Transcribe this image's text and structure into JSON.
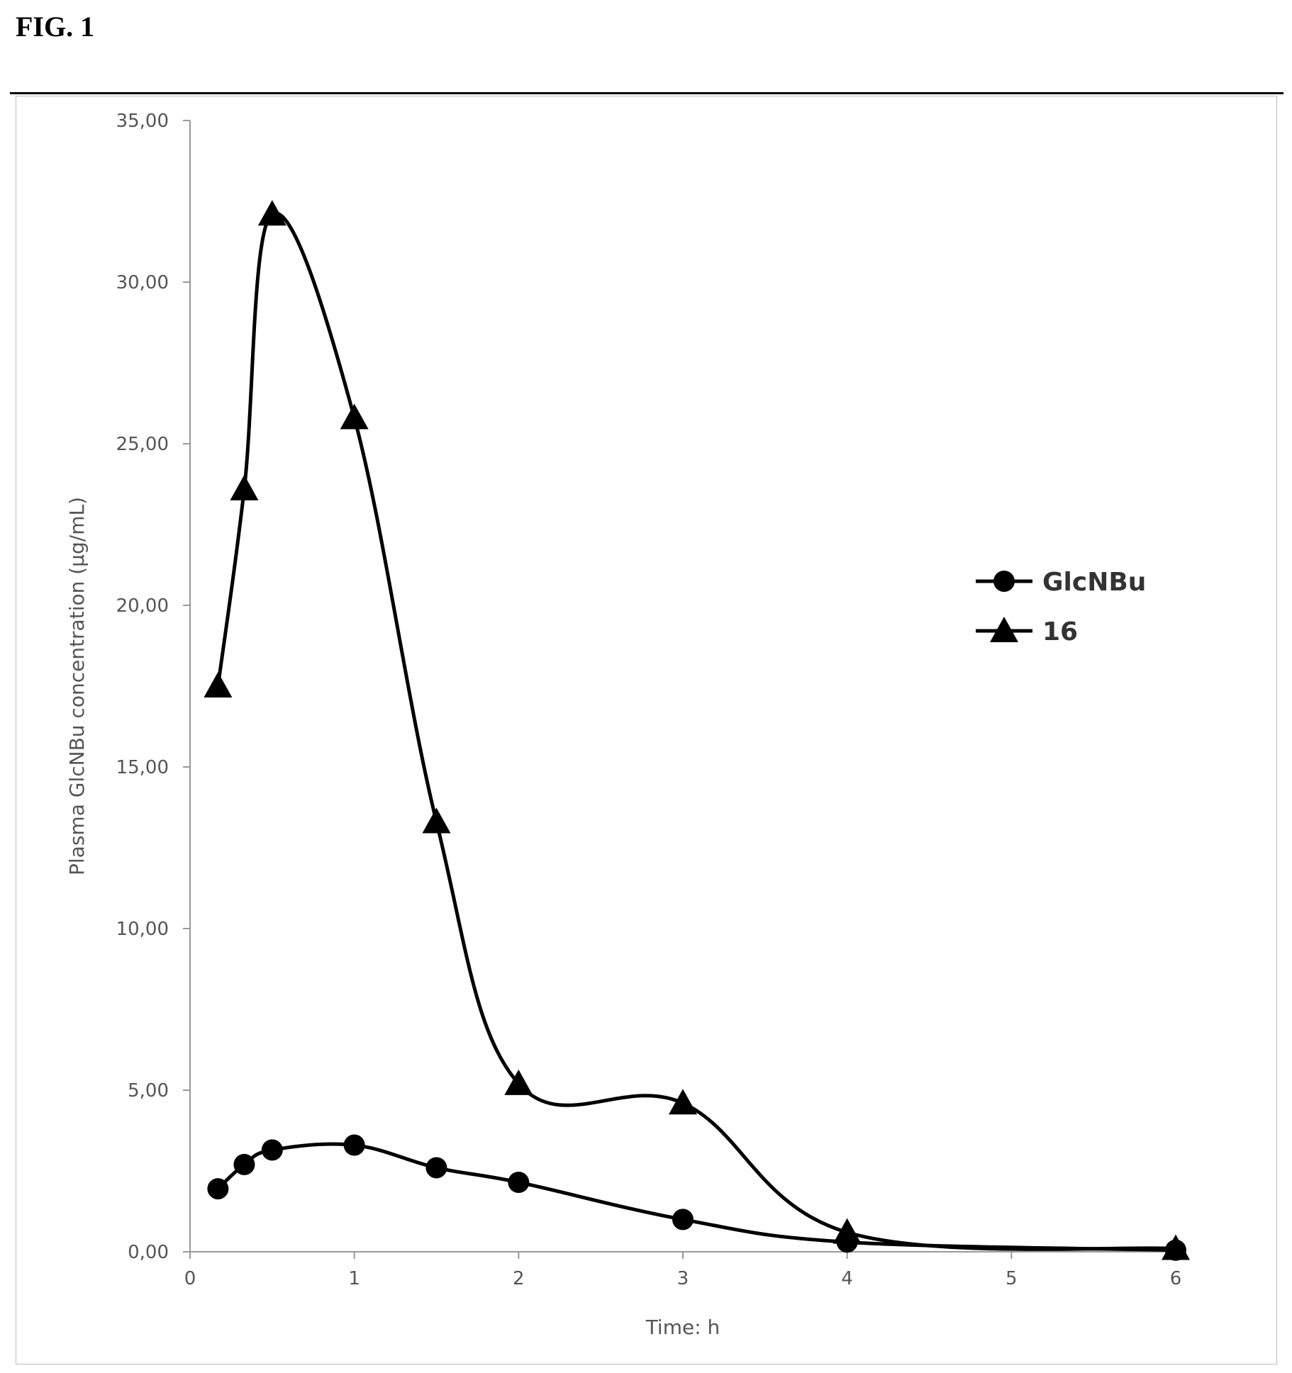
{
  "figure": {
    "label": "FIG. 1"
  },
  "chart_data": {
    "type": "line",
    "title": "",
    "xlabel": "Time:  h",
    "ylabel": "Plasma GlcNBu concentration (µg/mL)",
    "xlim": [
      0,
      6
    ],
    "ylim": [
      0,
      35
    ],
    "x_ticks": [
      "0",
      "1",
      "2",
      "3",
      "4",
      "5",
      "6"
    ],
    "y_ticks": [
      "0,00",
      "5,00",
      "10,00",
      "15,00",
      "20,00",
      "25,00",
      "30,00",
      "35,00"
    ],
    "grid": false,
    "legend_position": "right",
    "series": [
      {
        "name": "GlcNBu",
        "marker": "circle",
        "color": "#000000",
        "x": [
          0.17,
          0.33,
          0.5,
          1,
          1.5,
          2,
          3,
          4,
          6
        ],
        "y": [
          1.95,
          2.7,
          3.15,
          3.3,
          2.6,
          2.15,
          1.0,
          0.3,
          0.05
        ]
      },
      {
        "name": "16",
        "marker": "triangle",
        "color": "#000000",
        "x": [
          0.17,
          0.33,
          0.5,
          1,
          1.5,
          2,
          3,
          4,
          6
        ],
        "y": [
          17.5,
          23.6,
          32.1,
          25.8,
          13.3,
          5.2,
          4.6,
          0.6,
          0.1
        ]
      }
    ]
  }
}
